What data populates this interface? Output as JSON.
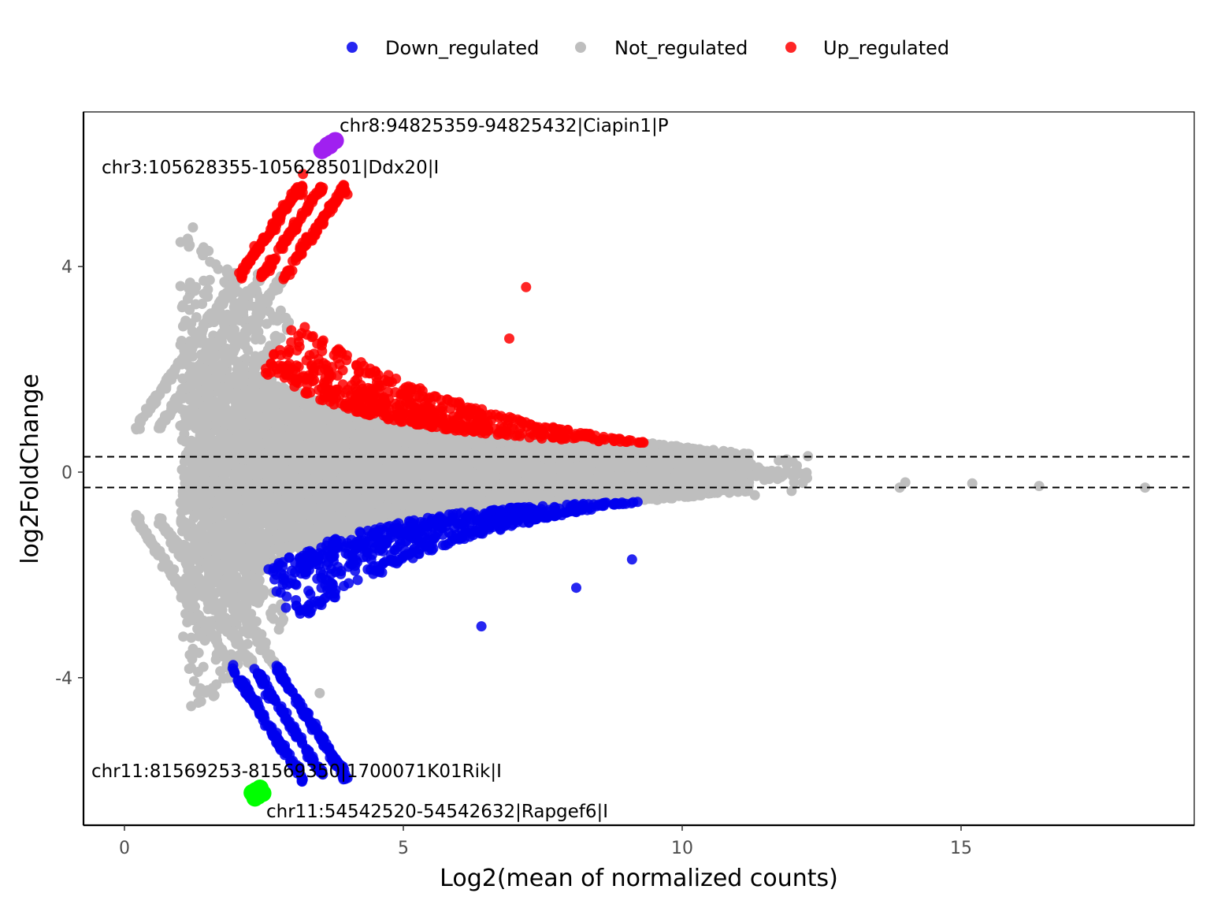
{
  "chart_data": {
    "type": "scatter",
    "title": "",
    "xlabel": "Log2(mean of normalized counts)",
    "ylabel": "log2FoldChange",
    "xlim": [
      -0.7,
      19.3
    ],
    "ylim": [
      -6.9,
      7.0
    ],
    "x_ticks": [
      0,
      5,
      10,
      15
    ],
    "x_tick_labels": [
      "0",
      "5",
      "10",
      "15"
    ],
    "y_ticks": [
      -4,
      0,
      4
    ],
    "y_tick_labels": [
      "-4",
      "0",
      "4"
    ],
    "grid": false,
    "legend_position": "top",
    "threshold_lines": [
      0.3,
      -0.3
    ],
    "series": [
      {
        "name": "Down_regulated",
        "color": "#0000ee"
      },
      {
        "name": "Not_regulated",
        "color": "#bebebe"
      },
      {
        "name": "Up_regulated",
        "color": "#ff0000"
      }
    ],
    "highlight_points": [
      {
        "label": "chr8:94825359-94825432|Ciapin1|P",
        "x": 3.7,
        "y": 6.4,
        "color": "#a020f0"
      },
      {
        "label": "chr3:105628355-105628501|Ddx20|I",
        "x": 3.6,
        "y": 6.3,
        "color": "#a020f0"
      },
      {
        "label": "chr11:81569253-81569350|1700071K01Rik|I",
        "x": 2.35,
        "y": -6.2,
        "color": "#00ff00"
      },
      {
        "label": "chr11:54542520-54542632|Rapgef6|I",
        "x": 2.4,
        "y": -6.3,
        "color": "#00ff00"
      }
    ],
    "outlier_points": [
      {
        "x": 13.9,
        "y": -0.3,
        "group": "Not_regulated"
      },
      {
        "x": 14.0,
        "y": -0.2,
        "group": "Not_regulated"
      },
      {
        "x": 15.2,
        "y": -0.22,
        "group": "Not_regulated"
      },
      {
        "x": 16.4,
        "y": -0.27,
        "group": "Not_regulated"
      },
      {
        "x": 18.3,
        "y": -0.3,
        "group": "Not_regulated"
      },
      {
        "x": 7.2,
        "y": 3.6,
        "group": "Up_regulated"
      },
      {
        "x": 6.9,
        "y": 2.6,
        "group": "Up_regulated"
      },
      {
        "x": 3.2,
        "y": 5.8,
        "group": "Up_regulated"
      },
      {
        "x": 8.1,
        "y": -2.25,
        "group": "Down_regulated"
      },
      {
        "x": 9.1,
        "y": -1.7,
        "group": "Down_regulated"
      },
      {
        "x": 6.4,
        "y": -3.0,
        "group": "Down_regulated"
      },
      {
        "x": 3.3,
        "y": -4.7,
        "group": "Down_regulated"
      },
      {
        "x": 3.5,
        "y": -4.3,
        "group": "Not_regulated"
      }
    ]
  }
}
